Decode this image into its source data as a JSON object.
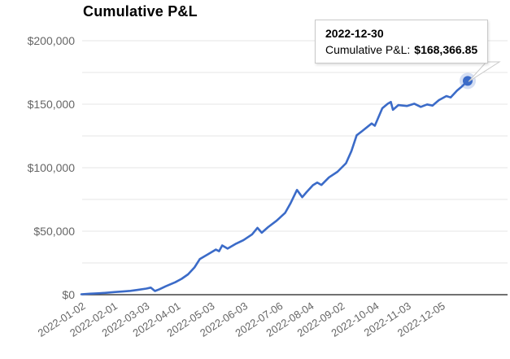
{
  "tooltip": {
    "date": "2022-12-30",
    "label": "Cumulative P&L:",
    "value": "$168,366.85"
  },
  "colors": {
    "line": "#3b6bc8",
    "marker": "#3b6bc8",
    "grid": "#e6e6e6",
    "baseline": "#424242",
    "axis_text": "#666666",
    "title_text": "#000000",
    "tooltip_border": "#c9c9c9"
  },
  "chart_data": {
    "type": "line",
    "title": "Cumulative P&L",
    "xlabel": "",
    "ylabel": "",
    "grid": true,
    "legend": "none",
    "ylim": [
      0,
      200000
    ],
    "y_minor_step": 25000,
    "y_ticks": [
      0,
      50000,
      100000,
      150000,
      200000
    ],
    "y_tick_labels": [
      "$0",
      "$50,000",
      "$100,000",
      "$150,000",
      "$200,000"
    ],
    "x_ticks": [
      "2022-01-02",
      "2022-02-01",
      "2022-03-03",
      "2022-04-01",
      "2022-05-03",
      "2022-06-03",
      "2022-07-06",
      "2022-08-04",
      "2022-09-02",
      "2022-10-04",
      "2022-11-03",
      "2022-12-05"
    ],
    "x_range": [
      "2022-01-02",
      "2022-12-30"
    ],
    "x": [
      "2022-01-02",
      "2022-01-10",
      "2022-01-18",
      "2022-01-25",
      "2022-02-03",
      "2022-02-11",
      "2022-02-17",
      "2022-02-24",
      "2022-03-04",
      "2022-03-08",
      "2022-03-12",
      "2022-03-16",
      "2022-03-22",
      "2022-03-31",
      "2022-04-06",
      "2022-04-12",
      "2022-04-18",
      "2022-04-23",
      "2022-04-30",
      "2022-05-08",
      "2022-05-11",
      "2022-05-14",
      "2022-05-19",
      "2022-05-27",
      "2022-06-03",
      "2022-06-11",
      "2022-06-16",
      "2022-06-20",
      "2022-06-26",
      "2022-07-04",
      "2022-07-12",
      "2022-07-17",
      "2022-07-23",
      "2022-07-28",
      "2022-08-01",
      "2022-08-07",
      "2022-08-11",
      "2022-08-15",
      "2022-08-22",
      "2022-08-30",
      "2022-09-07",
      "2022-09-12",
      "2022-09-17",
      "2022-09-22",
      "2022-10-01",
      "2022-10-04",
      "2022-10-11",
      "2022-10-16",
      "2022-10-19",
      "2022-10-21",
      "2022-10-26",
      "2022-11-03",
      "2022-11-10",
      "2022-11-16",
      "2022-11-22",
      "2022-11-27",
      "2022-12-03",
      "2022-12-10",
      "2022-12-14",
      "2022-12-20",
      "2022-12-24",
      "2022-12-30"
    ],
    "series": [
      {
        "name": "Cumulative P&L",
        "values": [
          300,
          800,
          1100,
          1500,
          2100,
          2600,
          3000,
          3800,
          4800,
          5600,
          2900,
          4200,
          6600,
          9800,
          12500,
          16000,
          21500,
          28000,
          31500,
          35500,
          34200,
          38800,
          36300,
          40200,
          43000,
          47500,
          52600,
          48800,
          53200,
          58300,
          64500,
          72000,
          82500,
          76800,
          80800,
          86200,
          88300,
          86400,
          92400,
          96800,
          103500,
          113000,
          125500,
          128800,
          134800,
          133000,
          146800,
          150300,
          151800,
          145600,
          149300,
          148600,
          150400,
          147900,
          149800,
          148900,
          153200,
          156400,
          155300,
          160800,
          163500,
          168366.85
        ]
      }
    ],
    "annotation_point": {
      "x": "2022-12-30",
      "y": 168366.85
    }
  }
}
